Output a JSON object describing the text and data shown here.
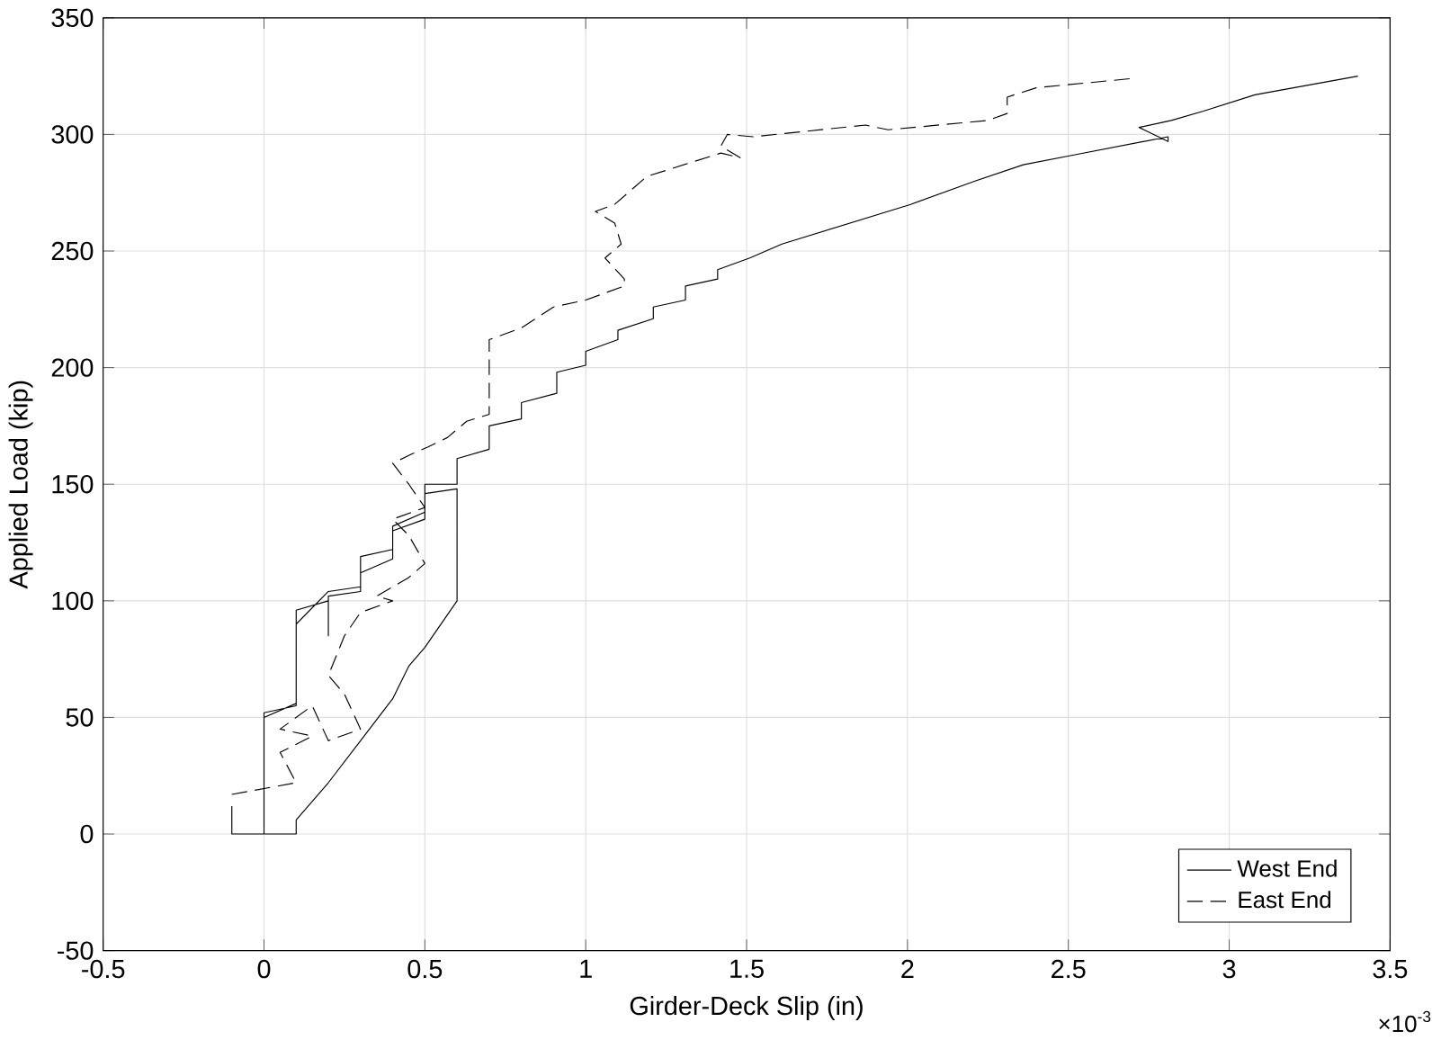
{
  "chart_data": {
    "type": "line",
    "xlabel": "Girder-Deck Slip (in)",
    "ylabel": "Applied Load (kip)",
    "annotations": [
      "×10$^{-3}$"
    ],
    "xlim": [
      -0.5,
      3.5
    ],
    "ylim": [
      -50,
      350
    ],
    "xticks": [
      -0.5,
      0,
      0.5,
      1,
      1.5,
      2,
      2.5,
      3,
      3.5
    ],
    "yticks": [
      -50,
      0,
      50,
      100,
      150,
      200,
      250,
      300,
      350
    ],
    "grid": true,
    "legend": "bottom right",
    "marker": "none",
    "series": [
      {
        "name": "West End",
        "color": "#000000",
        "line_style": "solid",
        "x": [
          -0.1,
          -0.1,
          0.1,
          0.1,
          0.2,
          0.3,
          0.4,
          0.45,
          0.5,
          0.6,
          0.6,
          0.5,
          0.5,
          0.4,
          0.4,
          0.3,
          0.3,
          0.2,
          0.2,
          0.2,
          0.1,
          0.1,
          0,
          0,
          0,
          0.1,
          0.1,
          0.2,
          0.3,
          0.3,
          0.4,
          0.4,
          0.5,
          0.5,
          0.6,
          0.6,
          0.7,
          0.7,
          0.8,
          0.8,
          0.91,
          0.91,
          1.0,
          1.0,
          1.1,
          1.1,
          1.21,
          1.21,
          1.31,
          1.31,
          1.41,
          1.41,
          1.51,
          1.61,
          2.01,
          2.21,
          2.36,
          2.51,
          2.81,
          2.81,
          2.72,
          2.82,
          2.92,
          3.08,
          3.4
        ],
        "values": [
          12,
          0,
          0,
          6,
          22,
          40,
          58,
          72,
          80,
          100,
          148,
          146,
          135,
          130,
          118,
          112,
          104,
          102,
          85,
          100,
          96,
          55,
          52,
          0,
          50,
          56,
          90,
          104,
          106,
          119,
          122,
          132,
          138,
          150,
          150,
          161,
          165,
          175,
          178,
          185,
          189,
          198,
          201,
          207,
          212,
          216,
          221,
          226,
          229,
          235,
          238,
          242,
          247,
          253,
          270,
          280,
          287,
          291,
          299,
          297,
          303,
          306,
          310,
          317,
          325
        ]
      },
      {
        "name": "East End",
        "color": "#000000",
        "line_style": "dashed",
        "x": [
          -0.1,
          0.1,
          0.05,
          0.15,
          0.05,
          0.15,
          0.2,
          0.3,
          0.25,
          0.2,
          0.25,
          0.3,
          0.4,
          0.35,
          0.45,
          0.5,
          0.45,
          0.4,
          0.5,
          0.45,
          0.4,
          0.46,
          0.51,
          0.57,
          0.63,
          0.7,
          0.7,
          0.8,
          0.9,
          1.0,
          1.12,
          1.12,
          1.06,
          1.11,
          1.09,
          1.03,
          1.09,
          1.19,
          1.42,
          1.48,
          1.42,
          1.44,
          1.52,
          1.87,
          1.94,
          2.25,
          2.31,
          2.31,
          2.4,
          2.7
        ],
        "values": [
          17,
          22,
          35,
          42,
          45,
          55,
          40,
          45,
          60,
          68,
          85,
          95,
          100,
          102,
          110,
          116,
          128,
          135,
          140,
          150,
          159,
          163,
          166,
          170,
          177,
          180,
          212,
          217,
          226,
          229,
          235,
          238,
          247,
          253,
          262,
          267,
          270,
          282,
          292,
          290,
          295,
          300,
          299,
          304,
          302,
          306,
          309,
          316,
          320,
          324
        ]
      }
    ]
  }
}
